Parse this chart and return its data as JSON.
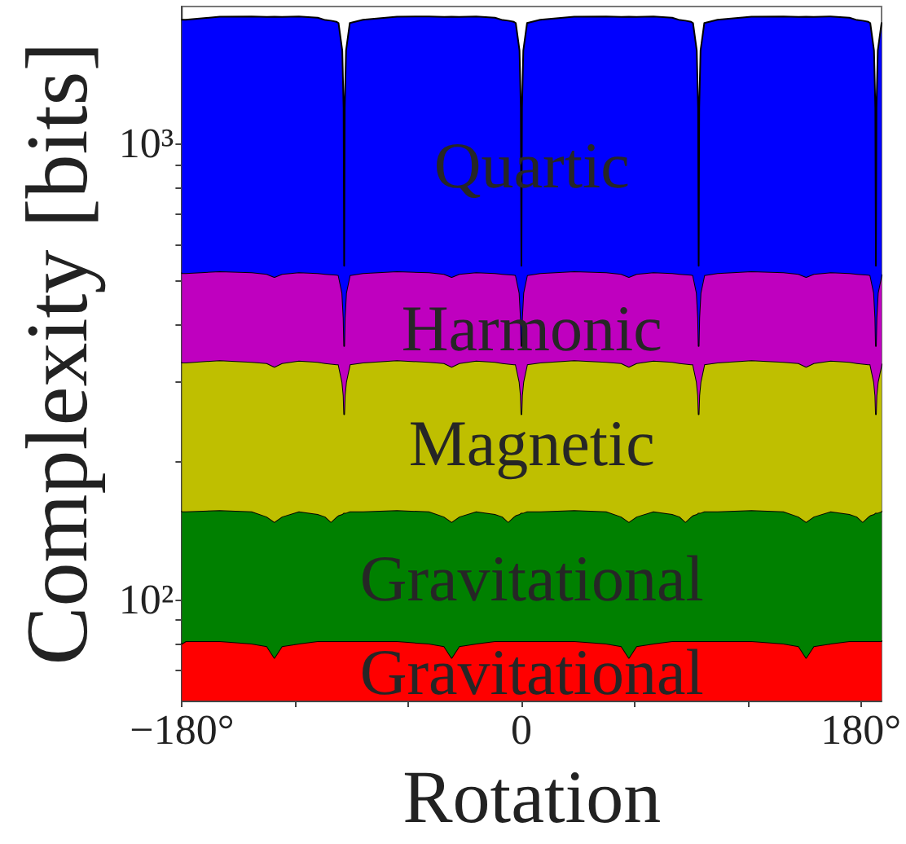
{
  "chart_data": {
    "type": "area",
    "stacked": true,
    "log": true,
    "xlabel": "Rotation",
    "ylabel": "Complexity [bits]",
    "xlim": [
      -180,
      191
    ],
    "xticks": [
      {
        "value": -180,
        "label": "−180°"
      },
      {
        "value": -120,
        "label": null
      },
      {
        "value": -60,
        "label": null
      },
      0,
      {
        "value": 60,
        "label": null
      },
      {
        "value": 120,
        "label": null
      },
      {
        "value": 180,
        "label": "180°"
      }
    ],
    "ylim": [
      60,
      2000
    ],
    "yticks": [
      {
        "value": 70,
        "label": null
      },
      {
        "value": 80,
        "label": null
      },
      {
        "value": 90,
        "label": null
      },
      {
        "value": 100,
        "label": "10²"
      },
      {
        "value": 200,
        "label": null
      },
      {
        "value": 300,
        "label": null
      },
      {
        "value": 400,
        "label": null
      },
      {
        "value": 500,
        "label": null
      },
      {
        "value": 600,
        "label": null
      },
      {
        "value": 700,
        "label": null
      },
      {
        "value": 800,
        "label": null
      },
      {
        "value": 900,
        "label": null
      },
      {
        "value": 1000,
        "label": "10³"
      }
    ],
    "x": [
      -180,
      -178,
      -160,
      -143,
      -135,
      -131,
      -127,
      -118,
      -108,
      -104,
      -101,
      -98,
      -97,
      -95,
      -94.3,
      -94,
      -93.7,
      -93,
      -91,
      -84,
      -66,
      -49,
      -41,
      -37,
      -33,
      -24,
      -14,
      -10,
      -7,
      -4,
      -3,
      -1,
      -0.3,
      0,
      0.3,
      1,
      3,
      10,
      28,
      45,
      53,
      57,
      61,
      70,
      80,
      84,
      87,
      90,
      91,
      93,
      93.7,
      94,
      94.3,
      95,
      97,
      104,
      122,
      139,
      147,
      151,
      155,
      164,
      174,
      178,
      181,
      184,
      185,
      187,
      187.7,
      188,
      188.3,
      189,
      191
    ],
    "series": [
      {
        "name": "Gravitational",
        "color": "#ff0000",
        "values": [
          80,
          81,
          81,
          80,
          79,
          74.5,
          79,
          80,
          81,
          81,
          81,
          81,
          81,
          81,
          81,
          81,
          81,
          81,
          81,
          81,
          81,
          80,
          79,
          74.5,
          79,
          80,
          81,
          81,
          81,
          81,
          81,
          81,
          81,
          81,
          81,
          81,
          81,
          81,
          81,
          80,
          79,
          74.5,
          79,
          80,
          81,
          81,
          81,
          81,
          81,
          81,
          81,
          81,
          81,
          81,
          81,
          81,
          81,
          80,
          79,
          74.5,
          79,
          80,
          81,
          81,
          81,
          81,
          81,
          81,
          81,
          81,
          81,
          81,
          81
        ]
      },
      {
        "name": "Gravitational",
        "color": "#008000",
        "values": [
          76,
          75,
          76,
          76,
          73,
          73.5,
          73,
          76,
          73,
          71,
          67,
          71,
          72,
          73,
          74,
          74,
          74,
          74,
          75,
          75,
          76,
          76,
          73,
          73.5,
          73,
          76,
          73,
          71,
          67,
          71,
          72,
          73,
          74,
          74,
          74,
          74,
          75,
          75,
          76,
          76,
          73,
          73.5,
          73,
          76,
          73,
          71,
          67,
          71,
          72,
          73,
          74,
          74,
          74,
          74,
          75,
          75,
          76,
          76,
          73,
          73.5,
          73,
          76,
          73,
          71,
          67,
          71,
          72,
          73,
          74,
          74,
          74,
          74,
          75
        ]
      },
      {
        "name": "Magnetic",
        "color": "#bfbf00",
        "values": [
          175,
          175,
          178,
          176,
          178,
          176,
          178,
          178,
          178,
          178,
          181,
          176,
          175,
          146,
          125,
          100,
          125,
          145,
          172,
          175,
          178,
          176,
          178,
          176,
          178,
          178,
          178,
          178,
          181,
          176,
          175,
          146,
          125,
          100,
          125,
          145,
          172,
          175,
          178,
          176,
          178,
          176,
          178,
          178,
          178,
          178,
          181,
          176,
          175,
          146,
          125,
          100,
          125,
          145,
          172,
          175,
          178,
          176,
          178,
          176,
          178,
          178,
          178,
          178,
          181,
          176,
          175,
          146,
          125,
          100,
          125,
          145,
          172
        ]
      },
      {
        "name": "Harmonic",
        "color": "#bf00bf",
        "values": [
          189,
          189,
          190,
          190,
          188,
          186,
          188,
          188,
          188,
          188,
          188,
          188,
          187,
          170,
          135,
          105,
          135,
          170,
          187,
          189,
          190,
          190,
          188,
          186,
          188,
          188,
          188,
          188,
          188,
          188,
          187,
          170,
          135,
          105,
          135,
          170,
          187,
          189,
          190,
          190,
          188,
          186,
          188,
          188,
          188,
          188,
          188,
          188,
          187,
          170,
          135,
          105,
          135,
          170,
          187,
          189,
          190,
          190,
          188,
          186,
          188,
          188,
          188,
          188,
          188,
          188,
          187,
          170,
          135,
          105,
          135,
          170,
          187
        ]
      },
      {
        "name": "Quartic",
        "color": "#0000ff",
        "values": [
          1350,
          1350,
          1375,
          1380,
          1380,
          1390,
          1380,
          1380,
          1370,
          1350,
          1345,
          1335,
          1325,
          1130,
          785,
          180,
          785,
          1130,
          1325,
          1350,
          1375,
          1380,
          1380,
          1390,
          1380,
          1380,
          1370,
          1350,
          1345,
          1335,
          1325,
          1130,
          785,
          180,
          785,
          1130,
          1325,
          1350,
          1375,
          1380,
          1380,
          1390,
          1380,
          1380,
          1370,
          1350,
          1345,
          1335,
          1325,
          1130,
          785,
          180,
          785,
          1130,
          1325,
          1350,
          1375,
          1380,
          1380,
          1390,
          1380,
          1380,
          1370,
          1350,
          1345,
          1335,
          1325,
          1130,
          785,
          180,
          785,
          1130,
          1325
        ]
      }
    ]
  }
}
